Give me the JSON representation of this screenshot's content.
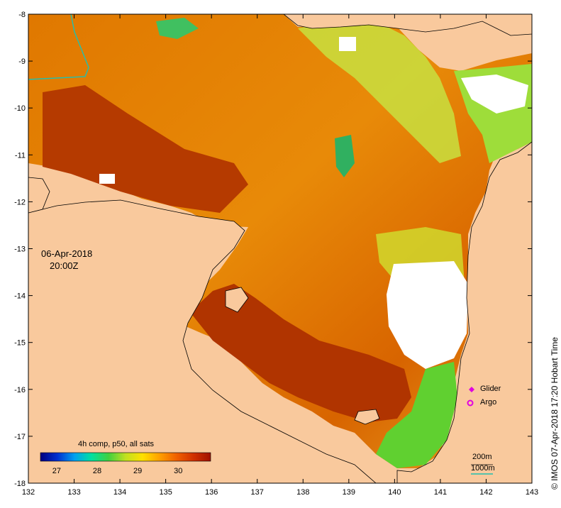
{
  "map": {
    "lon_ticks": [
      132,
      133,
      134,
      135,
      136,
      137,
      138,
      139,
      140,
      141,
      142,
      143
    ],
    "lat_ticks": [
      -8,
      -9,
      -10,
      -11,
      -12,
      -13,
      -14,
      -15,
      -16,
      -17,
      -18
    ],
    "lon_range": [
      132,
      143
    ],
    "lat_range": [
      -18,
      -8
    ],
    "date": "06-Apr-2018",
    "time": "20:00Z",
    "colors": {
      "land": "#f9c99d",
      "sst_warm": "#d96a00",
      "sst_hot": "#a82800",
      "sst_cool": "#9ee040",
      "cloud": "#ffffff"
    }
  },
  "colorbar": {
    "title": "4h comp, p50, all sats",
    "ticks": [
      27,
      28,
      29,
      30
    ],
    "range": [
      26.6,
      30.8
    ],
    "colors": [
      "#000080",
      "#0030d0",
      "#00a0f0",
      "#00e0a0",
      "#40d040",
      "#c0e020",
      "#ffe000",
      "#ffa000",
      "#f06000",
      "#d03000",
      "#a01000"
    ]
  },
  "legend": {
    "glider_label": "Glider",
    "argo_label": "Argo",
    "depth_200": "200m",
    "depth_1000": "1000m",
    "marker_color": "#e000e0",
    "isobath_color": "#20c0b0"
  },
  "credit": "© IMOS 07-Apr-2018 17:20 Hobart Time"
}
